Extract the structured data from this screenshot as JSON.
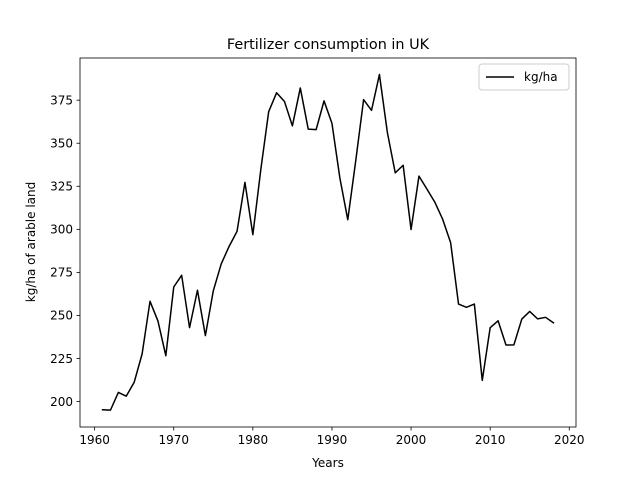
{
  "chart_data": {
    "type": "line",
    "title": "Fertilizer consumption in UK",
    "xlabel": "Years",
    "ylabel": "kg/ha of arable land",
    "xlim": [
      1958.15,
      2020.85
    ],
    "ylim": [
      185.2,
      399.5
    ],
    "xticks": [
      1960,
      1970,
      1980,
      1990,
      2000,
      2010,
      2020
    ],
    "yticks": [
      200,
      225,
      250,
      275,
      300,
      325,
      350,
      375
    ],
    "grid": false,
    "legend": {
      "position": "top-right",
      "entries": [
        "kg/ha"
      ]
    },
    "series": [
      {
        "name": "kg/ha",
        "color": "#000000",
        "x": [
          1961,
          1962,
          1963,
          1964,
          1965,
          1966,
          1967,
          1968,
          1969,
          1970,
          1971,
          1972,
          1973,
          1974,
          1975,
          1976,
          1977,
          1978,
          1979,
          1980,
          1981,
          1982,
          1983,
          1984,
          1985,
          1986,
          1987,
          1988,
          1989,
          1990,
          1991,
          1992,
          1993,
          1994,
          1995,
          1996,
          1997,
          1998,
          1999,
          2000,
          2001,
          2002,
          2003,
          2004,
          2005,
          2006,
          2007,
          2008,
          2009,
          2010,
          2011,
          2012,
          2013,
          2014,
          2015,
          2016,
          2017,
          2018
        ],
        "y": [
          195.2,
          195.0,
          205.3,
          203.1,
          211.2,
          227.6,
          258.2,
          246.8,
          226.6,
          266.5,
          273.3,
          242.9,
          264.6,
          238.3,
          264.3,
          279.9,
          290.1,
          298.8,
          327.3,
          296.9,
          334.5,
          368.3,
          379.3,
          374.2,
          360.1,
          382.1,
          358.2,
          357.9,
          374.6,
          361.5,
          329.8,
          305.6,
          339.6,
          375.3,
          369.1,
          389.9,
          356.4,
          332.8,
          337.2,
          299.9,
          330.9,
          323.4,
          315.8,
          305.8,
          292.3,
          256.6,
          254.7,
          256.6,
          212.3,
          242.9,
          246.9,
          232.8,
          232.9,
          247.9,
          252.3,
          248.0,
          248.9,
          245.7
        ]
      }
    ]
  }
}
